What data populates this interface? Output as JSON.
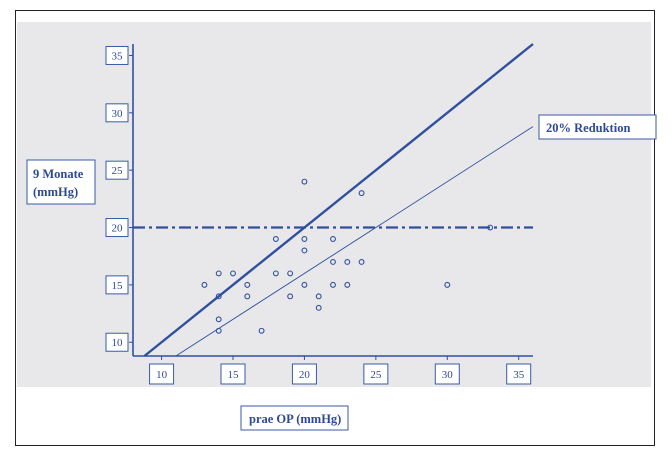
{
  "chart_data": {
    "type": "scatter",
    "title": "",
    "xlabel": "prae OP (mmHg)",
    "ylabel_lines": [
      "9 Monate",
      "(mmHg)"
    ],
    "xlim": [
      8,
      36
    ],
    "ylim": [
      8.8,
      36
    ],
    "x_ticks": [
      "10",
      "15",
      "20",
      "25",
      "30",
      "35"
    ],
    "y_ticks": [
      "10",
      "15",
      "20",
      "25",
      "30",
      "35"
    ],
    "grid": false,
    "reference_lines": [
      {
        "kind": "identity",
        "slope": 1,
        "intercept": 0
      },
      {
        "kind": "reduction",
        "slope": 0.8,
        "intercept": 0,
        "label": "20% Reduktion"
      },
      {
        "kind": "horizontal",
        "y": 20
      }
    ],
    "points": [
      {
        "x": 13,
        "y": 15
      },
      {
        "x": 14,
        "y": 16
      },
      {
        "x": 14,
        "y": 14
      },
      {
        "x": 14,
        "y": 12
      },
      {
        "x": 14,
        "y": 11
      },
      {
        "x": 15,
        "y": 16
      },
      {
        "x": 16,
        "y": 15
      },
      {
        "x": 16,
        "y": 14
      },
      {
        "x": 17,
        "y": 11
      },
      {
        "x": 18,
        "y": 19
      },
      {
        "x": 18,
        "y": 16
      },
      {
        "x": 19,
        "y": 16
      },
      {
        "x": 19,
        "y": 14
      },
      {
        "x": 20,
        "y": 24
      },
      {
        "x": 20,
        "y": 19
      },
      {
        "x": 20,
        "y": 18
      },
      {
        "x": 20,
        "y": 15
      },
      {
        "x": 21,
        "y": 14
      },
      {
        "x": 21,
        "y": 13
      },
      {
        "x": 22,
        "y": 19
      },
      {
        "x": 22,
        "y": 17
      },
      {
        "x": 22,
        "y": 15
      },
      {
        "x": 23,
        "y": 17
      },
      {
        "x": 23,
        "y": 15
      },
      {
        "x": 24,
        "y": 23
      },
      {
        "x": 24,
        "y": 17
      },
      {
        "x": 30,
        "y": 15
      },
      {
        "x": 33,
        "y": 20
      }
    ],
    "colors": {
      "lines": "#2f4f9f",
      "points": "#2f4f9f",
      "panel": "#e8e8ea",
      "text": "#2e4a96"
    }
  }
}
